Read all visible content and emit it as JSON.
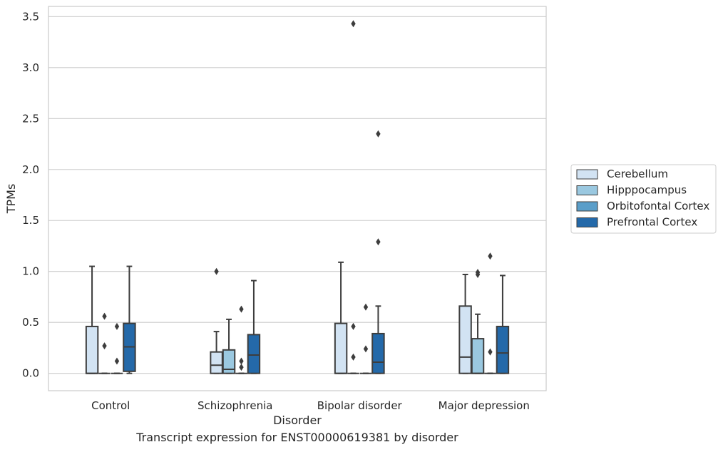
{
  "chart_data": {
    "type": "box",
    "caption": "Transcript expression for ENST00000619381 by disorder",
    "xlabel": "Disorder",
    "ylabel": "TPMs",
    "ylim": [
      -0.17,
      3.6
    ],
    "yticks": [
      0.0,
      0.5,
      1.0,
      1.5,
      2.0,
      2.5,
      3.0,
      3.5
    ],
    "ytick_labels": [
      "0.0",
      "0.5",
      "1.0",
      "1.5",
      "2.0",
      "2.5",
      "3.0",
      "3.5"
    ],
    "grid": "horizontal",
    "legend_position": "right",
    "categories": [
      "Control",
      "Schizophrenia",
      "Bipolar disorder",
      "Major depression"
    ],
    "series": [
      {
        "name": "Cerebellum",
        "color": "#d2e3f3",
        "boxes": [
          {
            "min": 0.0,
            "q1": 0.0,
            "median": 0.0,
            "q3": 0.46,
            "max": 1.05,
            "outliers": []
          },
          {
            "min": 0.0,
            "q1": 0.0,
            "median": 0.08,
            "q3": 0.21,
            "max": 0.41,
            "outliers": [
              1.0
            ]
          },
          {
            "min": 0.0,
            "q1": 0.0,
            "median": 0.0,
            "q3": 0.49,
            "max": 1.09,
            "outliers": []
          },
          {
            "min": 0.0,
            "q1": 0.0,
            "median": 0.16,
            "q3": 0.66,
            "max": 0.97,
            "outliers": []
          }
        ]
      },
      {
        "name": "Hipppocampus",
        "color": "#9ac8e0",
        "boxes": [
          {
            "min": 0.0,
            "q1": 0.0,
            "median": 0.0,
            "q3": 0.0,
            "max": 0.0,
            "outliers": [
              0.27,
              0.56
            ]
          },
          {
            "min": 0.0,
            "q1": 0.0,
            "median": 0.04,
            "q3": 0.23,
            "max": 0.53,
            "outliers": []
          },
          {
            "min": 0.0,
            "q1": 0.0,
            "median": 0.0,
            "q3": 0.0,
            "max": 0.0,
            "outliers": [
              0.16,
              0.46,
              3.43
            ]
          },
          {
            "min": 0.0,
            "q1": 0.0,
            "median": 0.0,
            "q3": 0.34,
            "max": 0.58,
            "outliers": [
              0.97,
              0.99
            ]
          }
        ]
      },
      {
        "name": "Orbitofontal Cortex",
        "color": "#5a9ec9",
        "boxes": [
          {
            "min": 0.0,
            "q1": 0.0,
            "median": 0.0,
            "q3": 0.0,
            "max": 0.0,
            "outliers": [
              0.12,
              0.46
            ]
          },
          {
            "min": 0.0,
            "q1": 0.0,
            "median": 0.0,
            "q3": 0.0,
            "max": 0.0,
            "outliers": [
              0.06,
              0.12,
              0.63
            ]
          },
          {
            "min": 0.0,
            "q1": 0.0,
            "median": 0.0,
            "q3": 0.0,
            "max": 0.0,
            "outliers": [
              0.24,
              0.65
            ]
          },
          {
            "min": 0.0,
            "q1": 0.0,
            "median": 0.0,
            "q3": 0.0,
            "max": 0.0,
            "outliers": [
              0.21,
              1.15
            ]
          }
        ]
      },
      {
        "name": "Prefrontal Cortex",
        "color": "#2469a9",
        "boxes": [
          {
            "min": 0.0,
            "q1": 0.02,
            "median": 0.26,
            "q3": 0.49,
            "max": 1.05,
            "outliers": []
          },
          {
            "min": 0.0,
            "q1": 0.0,
            "median": 0.18,
            "q3": 0.38,
            "max": 0.91,
            "outliers": []
          },
          {
            "min": 0.0,
            "q1": 0.0,
            "median": 0.11,
            "q3": 0.39,
            "max": 0.66,
            "outliers": [
              1.29,
              2.35
            ]
          },
          {
            "min": 0.0,
            "q1": 0.0,
            "median": 0.2,
            "q3": 0.46,
            "max": 0.96,
            "outliers": []
          }
        ]
      }
    ]
  }
}
